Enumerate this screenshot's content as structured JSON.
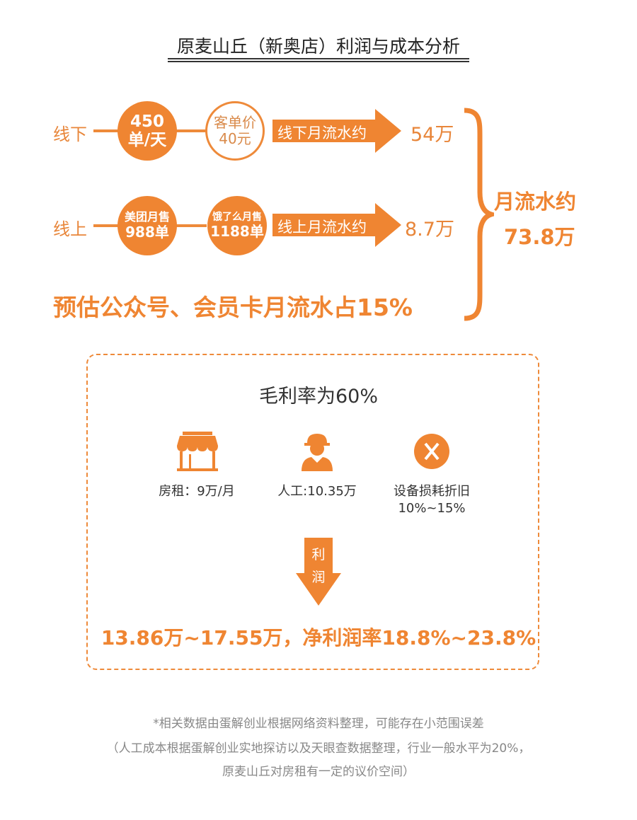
{
  "title": "原麦山丘（新奥店）利润与成本分析",
  "offline": {
    "label": "线下",
    "orders": [
      "450",
      "单/天"
    ],
    "price": [
      "客单价",
      "40元"
    ],
    "arrow": "线下月流水约",
    "value": "54万"
  },
  "online": {
    "label": "线上",
    "meituan": [
      "美团月售",
      "988单"
    ],
    "eleme": [
      "饿了么月售",
      "1188单"
    ],
    "arrow": "线上月流水约",
    "value": "8.7万"
  },
  "total": {
    "label": "月流水约",
    "value": "73.8万"
  },
  "estimate": "预估公众号、会员卡月流水占15%",
  "gross": "毛利率为60%",
  "costs": [
    {
      "icon": "store-icon",
      "label": "房租：9万/月"
    },
    {
      "icon": "worker-icon",
      "label": "人工:10.35万"
    },
    {
      "icon": "x-circle-icon",
      "label": "设备损耗折旧",
      "sub": "10%~15%"
    }
  ],
  "profit_arrow": [
    "利",
    "润"
  ],
  "profit": "13.86万~17.55万，净利润率18.8%~23.8%",
  "notes": [
    "*相关数据由蛋解创业根据网络资料整理，可能存在小范围误差",
    "（人工成本根据蛋解创业实地探访以及天眼查数据整理，行业一般水平为20%，",
    "原麦山丘对房租有一定的议价空间）"
  ],
  "colors": {
    "accent": "#ef8532",
    "text": "#333333",
    "note": "#888888"
  }
}
